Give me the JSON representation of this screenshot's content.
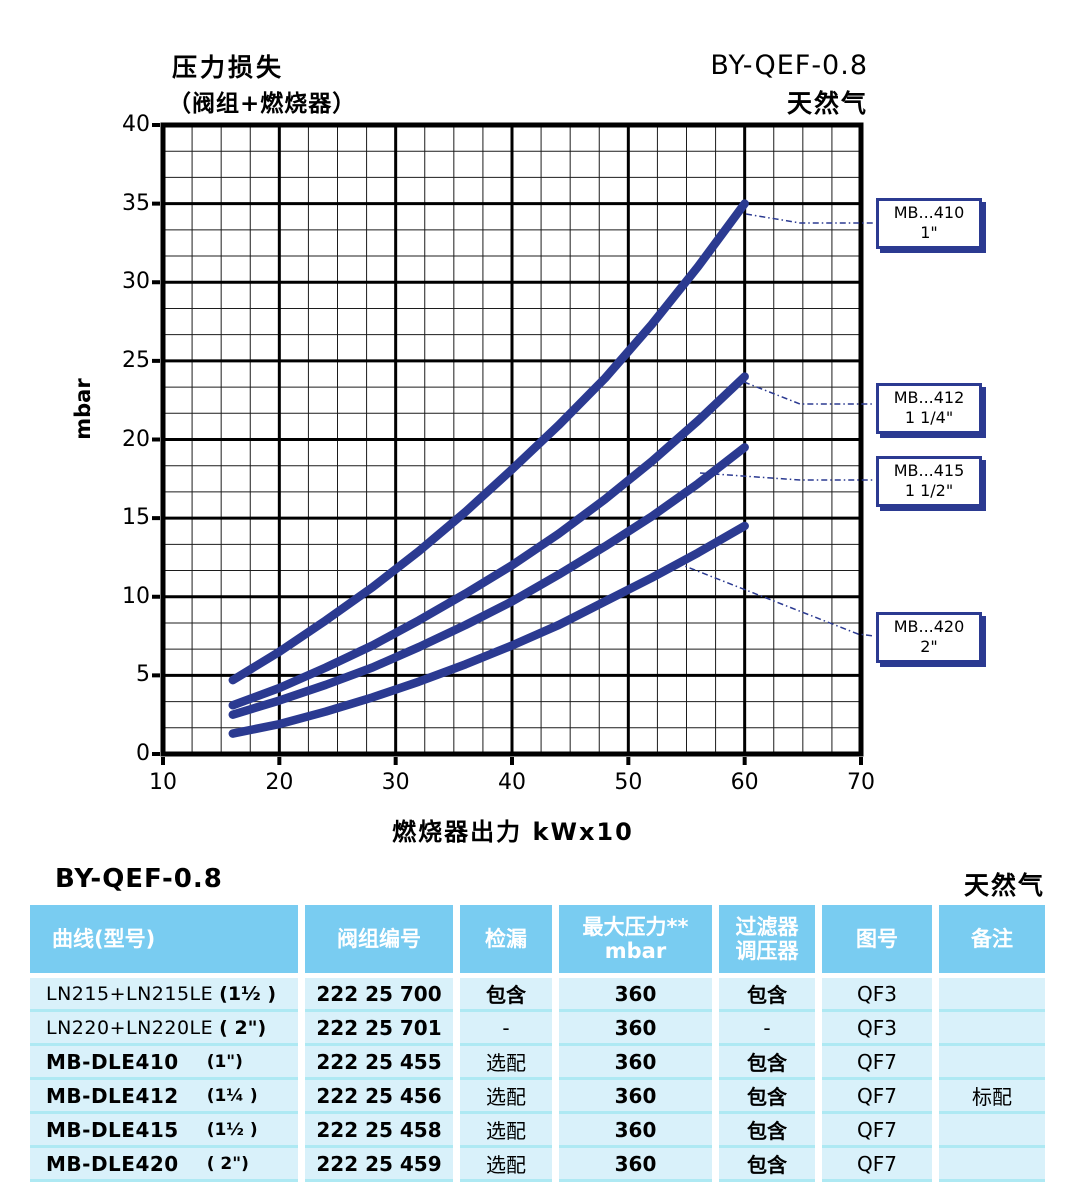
{
  "chart": {
    "title_line1": "压力损失",
    "title_line2": "（阀组+燃烧器）",
    "model": "BY-QEF-0.8",
    "gas": "天然气",
    "ylabel": "mbar",
    "xlabel": "燃烧器出力  kWx10"
  },
  "chart_data": {
    "type": "line",
    "title": "压力损失（阀组+燃烧器） BY-QEF-0.8 天然气",
    "xlabel": "燃烧器出力 kWx10",
    "ylabel": "mbar",
    "xlim": [
      10,
      70
    ],
    "ylim": [
      0,
      40
    ],
    "x_ticks": [
      10,
      20,
      30,
      40,
      50,
      60,
      70
    ],
    "y_ticks": [
      0,
      5,
      10,
      15,
      20,
      25,
      30,
      35,
      40
    ],
    "grid": "major+minor",
    "legend_position": "right-callout-boxes",
    "line_color": "#2b3a91",
    "series": [
      {
        "name": "MB...410",
        "size": "1\"",
        "points": [
          [
            16,
            4.7
          ],
          [
            20,
            6.5
          ],
          [
            24,
            8.5
          ],
          [
            28,
            10.6
          ],
          [
            32,
            12.9
          ],
          [
            36,
            15.4
          ],
          [
            40,
            18.1
          ],
          [
            44,
            20.9
          ],
          [
            48,
            23.9
          ],
          [
            52,
            27.3
          ],
          [
            56,
            31.0
          ],
          [
            60,
            35.0
          ]
        ]
      },
      {
        "name": "MB...412",
        "size": "1 1/4\"",
        "points": [
          [
            16,
            3.1
          ],
          [
            20,
            4.2
          ],
          [
            24,
            5.5
          ],
          [
            28,
            6.9
          ],
          [
            32,
            8.5
          ],
          [
            36,
            10.2
          ],
          [
            40,
            12.0
          ],
          [
            44,
            14.0
          ],
          [
            48,
            16.2
          ],
          [
            52,
            18.6
          ],
          [
            56,
            21.2
          ],
          [
            60,
            24.0
          ]
        ]
      },
      {
        "name": "MB...415",
        "size": "1 1/2\"",
        "points": [
          [
            16,
            2.5
          ],
          [
            20,
            3.4
          ],
          [
            24,
            4.4
          ],
          [
            28,
            5.5
          ],
          [
            32,
            6.8
          ],
          [
            36,
            8.2
          ],
          [
            40,
            9.7
          ],
          [
            44,
            11.4
          ],
          [
            48,
            13.2
          ],
          [
            52,
            15.1
          ],
          [
            56,
            17.2
          ],
          [
            60,
            19.5
          ]
        ]
      },
      {
        "name": "MB...420",
        "size": "2\"",
        "points": [
          [
            16,
            1.3
          ],
          [
            20,
            1.9
          ],
          [
            24,
            2.7
          ],
          [
            28,
            3.6
          ],
          [
            32,
            4.6
          ],
          [
            36,
            5.7
          ],
          [
            40,
            6.9
          ],
          [
            44,
            8.2
          ],
          [
            48,
            9.7
          ],
          [
            52,
            11.2
          ],
          [
            56,
            12.8
          ],
          [
            60,
            14.5
          ]
        ]
      }
    ]
  },
  "table": {
    "title_left": "BY-QEF-0.8",
    "title_right": "天然气",
    "headers": [
      "曲线(型号)",
      "阀组编号",
      "检漏",
      "最大压力**\nmbar",
      "过滤器\n调压器",
      "图号",
      "备注"
    ],
    "rows": [
      {
        "model": "LN215+LN215LE",
        "size": "(1½ )",
        "valve_no": "222 25 700",
        "leak_check": "包含",
        "max_pressure": "360",
        "filter_regulator": "包含",
        "figure_no": "QF3",
        "remark": ""
      },
      {
        "model": "LN220+LN220LE",
        "size": "( 2\")",
        "valve_no": "222 25 701",
        "leak_check": "-",
        "max_pressure": "360",
        "filter_regulator": "-",
        "figure_no": "QF3",
        "remark": ""
      },
      {
        "model": "MB-DLE410",
        "size": "(1\")",
        "valve_no": "222 25 455",
        "leak_check": "选配",
        "max_pressure": "360",
        "filter_regulator": "包含",
        "figure_no": "QF7",
        "remark": ""
      },
      {
        "model": "MB-DLE412",
        "size": "(1¼ )",
        "valve_no": "222 25 456",
        "leak_check": "选配",
        "max_pressure": "360",
        "filter_regulator": "包含",
        "figure_no": "QF7",
        "remark": "标配"
      },
      {
        "model": "MB-DLE415",
        "size": "(1½ )",
        "valve_no": "222 25 458",
        "leak_check": "选配",
        "max_pressure": "360",
        "filter_regulator": "包含",
        "figure_no": "QF7",
        "remark": ""
      },
      {
        "model": "MB-DLE420",
        "size": "( 2\")",
        "valve_no": "222 25 459",
        "leak_check": "选配",
        "max_pressure": "360",
        "filter_regulator": "包含",
        "figure_no": "QF7",
        "remark": ""
      }
    ]
  }
}
